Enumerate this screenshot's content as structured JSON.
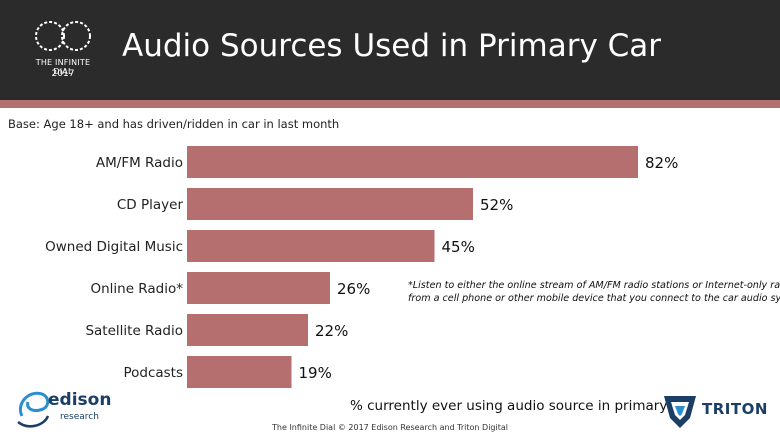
{
  "header": {
    "title": "Audio Sources Used in Primary Car",
    "logo_line1": "THE INFINITE DIAL",
    "logo_line2": "2017"
  },
  "base_note": "Base: Age 18+ and has driven/ridden in car in last month",
  "footnote_line1": "*Listen to either the online stream of AM/FM radio stations or Internet-only radio",
  "footnote_line2": "from a cell phone or other mobile device that you connect to the car audio system",
  "caption": "% currently ever using audio source in primary car",
  "copyright": "The Infinite Dial  © 2017 Edison Research and Triton Digital",
  "logos": {
    "edison_word": "edison",
    "edison_sub": "research",
    "triton_word": "TRITON"
  },
  "colors": {
    "bar": "#b56f6f",
    "header_bg": "#2b2b2b",
    "accent_stripe": "#b56f6f"
  },
  "chart_data": {
    "type": "bar",
    "orientation": "horizontal",
    "categories": [
      "AM/FM Radio",
      "CD Player",
      "Owned Digital Music",
      "Online Radio*",
      "Satellite Radio",
      "Podcasts"
    ],
    "values": [
      82,
      52,
      45,
      26,
      22,
      19
    ],
    "value_labels": [
      "82%",
      "52%",
      "45%",
      "26%",
      "22%",
      "19%"
    ],
    "unit": "%",
    "xlim": [
      0,
      100
    ],
    "grid": false,
    "legend": "none"
  }
}
